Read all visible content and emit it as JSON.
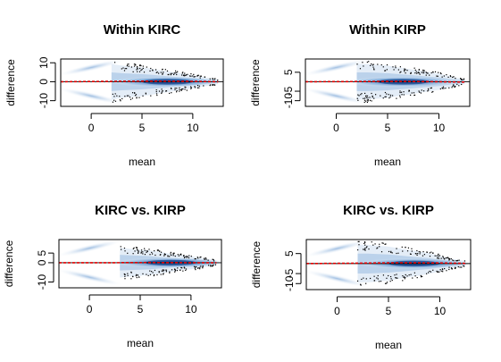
{
  "figure": {
    "layout": "2x2 grid of MA (mean-difference) smooth scatter plots"
  },
  "chart_data": [
    {
      "type": "scatter",
      "style": "smoothScatter density with outlier points",
      "title": "Within KIRC",
      "xlabel": "mean",
      "ylabel": "difference",
      "xlim": [
        -3,
        13
      ],
      "ylim": [
        -13,
        12
      ],
      "xticks": [
        0,
        5,
        10
      ],
      "yticks": [
        -10,
        0,
        10
      ],
      "ytick_labels": [
        "-10",
        "0",
        "10"
      ],
      "reference_line_y": 0,
      "fit_line": {
        "x": [
          -3,
          2,
          6,
          10,
          12.5
        ],
        "y": [
          0.0,
          0.2,
          0.3,
          0.2,
          0.0
        ],
        "color": "#e00000",
        "style": "dashed"
      },
      "density_color": "#1f5aa6",
      "density_shape": {
        "upper_wing": [
          [
            -2.5,
            4.5
          ],
          [
            2.5,
            10.5
          ]
        ],
        "lower_wing": [
          [
            -2.5,
            -4.5
          ],
          [
            2.5,
            -10.5
          ]
        ],
        "core_center": [
          7.5,
          0
        ]
      },
      "envelope": {
        "x": [
          2,
          3,
          4,
          5,
          6,
          7,
          8,
          9,
          10,
          11,
          12.5
        ],
        "half_width": [
          11,
          10,
          9.5,
          9,
          8,
          7,
          6,
          5,
          4,
          3,
          1.5
        ]
      }
    },
    {
      "type": "scatter",
      "style": "smoothScatter density with outlier points",
      "title": "Within KIRP",
      "xlabel": "mean",
      "ylabel": "difference",
      "xlim": [
        -3,
        13
      ],
      "ylim": [
        -13,
        12
      ],
      "xticks": [
        0,
        5,
        10
      ],
      "yticks": [
        -10,
        -5,
        5
      ],
      "ytick_labels": [
        "-10",
        "-5",
        "5"
      ],
      "reference_line_y": 0,
      "fit_line": {
        "x": [
          -3,
          2,
          6,
          10,
          12.5
        ],
        "y": [
          0.0,
          0.1,
          0.2,
          0.0,
          -0.2
        ],
        "color": "#e00000",
        "style": "dashed"
      },
      "density_color": "#1f5aa6",
      "density_shape": {
        "upper_wing": [
          [
            -2.5,
            4.5
          ],
          [
            2.5,
            10.5
          ]
        ],
        "lower_wing": [
          [
            -2.5,
            -4.5
          ],
          [
            2.5,
            -10.5
          ]
        ],
        "core_center": [
          6.5,
          0
        ]
      },
      "envelope": {
        "x": [
          2,
          3,
          4,
          5,
          6,
          7,
          8,
          9,
          10,
          11,
          12.5
        ],
        "half_width": [
          11,
          11,
          10.5,
          10,
          9,
          8,
          7,
          6,
          5,
          3.5,
          1.5
        ]
      }
    },
    {
      "type": "scatter",
      "style": "smoothScatter density with outlier points",
      "title": "KIRC vs. KIRP",
      "xlabel": "mean",
      "ylabel": "difference",
      "xlim": [
        -3,
        13
      ],
      "ylim": [
        -13,
        12
      ],
      "xticks": [
        0,
        5,
        10
      ],
      "yticks": [
        -10,
        0,
        5
      ],
      "ytick_labels": [
        "-10",
        "0",
        "5"
      ],
      "reference_line_y": 0,
      "fit_line": {
        "x": [
          -3,
          2,
          6,
          10,
          12.5
        ],
        "y": [
          0.0,
          0.0,
          0.1,
          0.0,
          0.0
        ],
        "color": "#e00000",
        "style": "dashed"
      },
      "density_color": "#1f5aa6",
      "density_shape": {
        "upper_wing": [
          [
            -2.5,
            4.5
          ],
          [
            2.5,
            10.5
          ]
        ],
        "lower_wing": [
          [
            -2.5,
            -4.5
          ],
          [
            2.5,
            -10.5
          ]
        ],
        "core_center": [
          8,
          0
        ]
      },
      "envelope": {
        "x": [
          3,
          4,
          5,
          6,
          7,
          8,
          9,
          10,
          11,
          12.5
        ],
        "half_width": [
          9,
          8.5,
          8,
          7.5,
          6.5,
          5.5,
          4.5,
          4,
          3,
          1.5
        ]
      }
    },
    {
      "type": "scatter",
      "style": "smoothScatter density with outlier points",
      "title": "KIRC vs. KIRP",
      "xlabel": "mean",
      "ylabel": "difference",
      "xlim": [
        -3,
        13
      ],
      "ylim": [
        -13,
        12
      ],
      "xticks": [
        0,
        5,
        10
      ],
      "yticks": [
        -10,
        -5,
        5
      ],
      "ytick_labels": [
        "-10",
        "-5",
        "5"
      ],
      "reference_line_y": 0,
      "fit_line": {
        "x": [
          -3,
          2,
          6,
          10,
          12.5
        ],
        "y": [
          0.0,
          0.2,
          0.4,
          0.3,
          0.1
        ],
        "color": "#e00000",
        "style": "dashed"
      },
      "density_color": "#1f5aa6",
      "density_shape": {
        "upper_wing": [
          [
            -2.5,
            4.5
          ],
          [
            2.5,
            10.5
          ]
        ],
        "lower_wing": [
          [
            -2.5,
            -4.5
          ],
          [
            2.5,
            -10.5
          ]
        ],
        "core_center": [
          7.5,
          0
        ]
      },
      "envelope": {
        "x": [
          2,
          3,
          4,
          5,
          6,
          7,
          8,
          9,
          10,
          11,
          12.5
        ],
        "half_width": [
          11,
          11,
          10.5,
          10,
          9,
          8,
          7,
          6,
          4.5,
          3,
          1.5
        ]
      }
    }
  ]
}
